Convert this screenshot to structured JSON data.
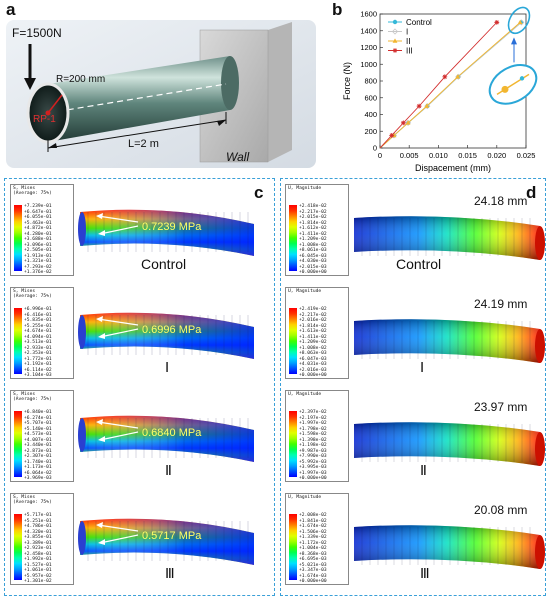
{
  "panel_a": {
    "letter": "a",
    "force_label": "F=1500N",
    "radius_label": "R=200 mm",
    "rp_label": "RP-1",
    "length_label": "L=2 m",
    "wall_label": "Wall"
  },
  "panel_b": {
    "letter": "b",
    "chart_data": {
      "type": "line",
      "xlabel": "Dispacement (mm)",
      "ylabel": "Force (N)",
      "xlim": [
        0,
        0.025
      ],
      "ylim": [
        0,
        1600
      ],
      "x_ticks": [
        "0",
        "0.005",
        "0.010",
        "0.015",
        "0.020",
        "0.025"
      ],
      "y_ticks": [
        "0",
        "200",
        "400",
        "600",
        "800",
        "1000",
        "1200",
        "1400",
        "1600"
      ],
      "series": [
        {
          "name": "Control",
          "color": "#35b8d8",
          "marker": "circle",
          "points": [
            [
              0,
              0
            ],
            [
              0.0024,
              150
            ],
            [
              0.0048,
              300
            ],
            [
              0.0081,
              500
            ],
            [
              0.0134,
              850
            ],
            [
              0.0242,
              1500
            ]
          ]
        },
        {
          "name": "I",
          "color": "#c8c8c8",
          "marker": "diamond",
          "points": [
            [
              0,
              0
            ],
            [
              0.0024,
              150
            ],
            [
              0.0048,
              300
            ],
            [
              0.0081,
              500
            ],
            [
              0.0134,
              850
            ],
            [
              0.0242,
              1500
            ]
          ]
        },
        {
          "name": "II",
          "color": "#f2b630",
          "marker": "triangle",
          "points": [
            [
              0,
              0
            ],
            [
              0.0024,
              150
            ],
            [
              0.0048,
              300
            ],
            [
              0.008,
              500
            ],
            [
              0.0133,
              850
            ],
            [
              0.024,
              1500
            ]
          ]
        },
        {
          "name": "III",
          "color": "#d22d2d",
          "marker": "star",
          "points": [
            [
              0,
              0
            ],
            [
              0.002,
              150
            ],
            [
              0.004,
              300
            ],
            [
              0.0067,
              500
            ],
            [
              0.0111,
              850
            ],
            [
              0.02,
              1500
            ]
          ]
        }
      ]
    }
  },
  "panel_c": {
    "letter": "c",
    "rows": [
      {
        "case": "Control",
        "value": "0.7239 MPa",
        "legend_title": [
          "S, Mises",
          "(Average: 75%)"
        ],
        "legend_values": [
          "+7.239e-01",
          "+6.647e-01",
          "+6.055e-01",
          "+5.463e-01",
          "+4.872e-01",
          "+4.280e-01",
          "+3.688e-01",
          "+3.096e-01",
          "+2.505e-01",
          "+1.913e-01",
          "+1.321e-01",
          "+7.293e-02",
          "+1.376e-02"
        ]
      },
      {
        "case": "Ⅰ",
        "value": "0.6996 MPa",
        "legend_title": [
          "S, Mises",
          "(Average: 75%)"
        ],
        "legend_values": [
          "+6.996e-01",
          "+6.416e-01",
          "+5.835e-01",
          "+5.255e-01",
          "+4.674e-01",
          "+4.094e-01",
          "+3.513e-01",
          "+2.933e-01",
          "+2.353e-01",
          "+1.772e-01",
          "+1.192e-01",
          "+6.114e-02",
          "+3.104e-03"
        ]
      },
      {
        "case": "Ⅱ",
        "value": "0.6840 MPa",
        "legend_title": [
          "S, Mises",
          "(Average: 75%)"
        ],
        "legend_values": [
          "+6.840e-01",
          "+6.274e-01",
          "+5.707e-01",
          "+5.140e-01",
          "+4.573e-01",
          "+4.007e-01",
          "+3.440e-01",
          "+2.873e-01",
          "+2.307e-01",
          "+1.740e-01",
          "+1.173e-01",
          "+6.064e-02",
          "+3.969e-03"
        ]
      },
      {
        "case": "Ⅲ",
        "value": "0.5717 MPa",
        "legend_title": [
          "S, Mises",
          "(Average: 75%)"
        ],
        "legend_values": [
          "+5.717e-01",
          "+5.251e-01",
          "+4.786e-01",
          "+4.320e-01",
          "+3.855e-01",
          "+3.389e-01",
          "+2.923e-01",
          "+2.458e-01",
          "+1.992e-01",
          "+1.527e-01",
          "+1.061e-01",
          "+5.957e-02",
          "+1.301e-02"
        ]
      }
    ]
  },
  "panel_d": {
    "letter": "d",
    "rows": [
      {
        "case": "Control",
        "value": "24.18 mm",
        "legend_title": [
          "U, Magnitude"
        ],
        "legend_values": [
          "+2.418e-02",
          "+2.217e-02",
          "+2.015e-02",
          "+1.814e-02",
          "+1.612e-02",
          "+1.411e-02",
          "+1.209e-02",
          "+1.008e-02",
          "+8.061e-03",
          "+6.045e-03",
          "+4.030e-03",
          "+2.015e-03",
          "+0.000e+00"
        ]
      },
      {
        "case": "Ⅰ",
        "value": "24.19 mm",
        "legend_title": [
          "U, Magnitude"
        ],
        "legend_values": [
          "+2.419e-02",
          "+2.217e-02",
          "+2.016e-02",
          "+1.814e-02",
          "+1.613e-02",
          "+1.411e-02",
          "+1.209e-02",
          "+1.008e-02",
          "+8.063e-03",
          "+6.047e-03",
          "+4.031e-03",
          "+2.016e-03",
          "+0.000e+00"
        ]
      },
      {
        "case": "Ⅱ",
        "value": "23.97 mm",
        "legend_title": [
          "U, Magnitude"
        ],
        "legend_values": [
          "+2.397e-02",
          "+2.197e-02",
          "+1.997e-02",
          "+1.798e-02",
          "+1.598e-02",
          "+1.398e-02",
          "+1.198e-02",
          "+9.987e-03",
          "+7.990e-03",
          "+5.992e-03",
          "+3.995e-03",
          "+1.997e-03",
          "+0.000e+00"
        ]
      },
      {
        "case": "Ⅲ",
        "value": "20.08 mm",
        "legend_title": [
          "U, Magnitude"
        ],
        "legend_values": [
          "+2.008e-02",
          "+1.841e-02",
          "+1.674e-02",
          "+1.506e-02",
          "+1.339e-02",
          "+1.172e-02",
          "+1.004e-02",
          "+8.368e-03",
          "+6.695e-03",
          "+5.021e-03",
          "+3.347e-03",
          "+1.674e-03",
          "+0.000e+00"
        ]
      }
    ]
  }
}
